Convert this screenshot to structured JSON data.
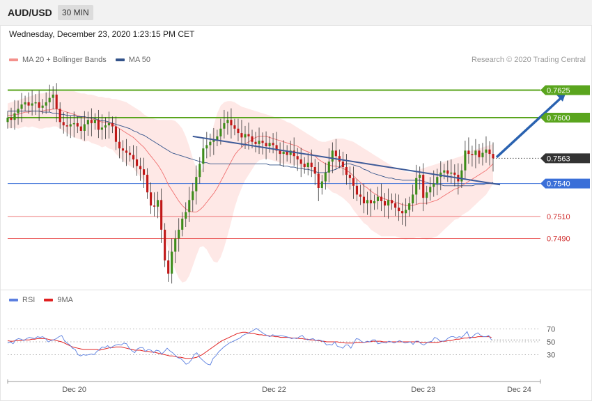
{
  "header": {
    "symbol": "AUD/USD",
    "timeframe": "30 MIN",
    "datetime": "Wednesday, December 23, 2020 1:23:15 PM CET"
  },
  "legend": {
    "ma20_label": "MA 20 + Bollinger Bands",
    "ma50_label": "MA 50",
    "credit": "Research © 2020 Trading Central",
    "rsi_label": "RSI",
    "ma9_label": "9MA"
  },
  "colors": {
    "resistance": "#5aa51e",
    "support_ma": "#3a6fd8",
    "support": "#e84a4a",
    "price_badge": "#333333",
    "candle_up": "#3d8c1a",
    "candle_down": "#c01818",
    "bollinger_fill": "#fde0de",
    "ma20": "#f07070",
    "ma50": "#33538a",
    "trendline": "#3d5a98",
    "arrow": "#2a62b0",
    "rsi_line": "#5b7fe0",
    "rsi_ma": "#e02020"
  },
  "chart_data": {
    "type": "candlestick",
    "symbol": "AUD/USD",
    "interval": "30 MIN",
    "price_range": [
      0.7446,
      0.7645
    ],
    "levels": [
      {
        "value": 0.7625,
        "label": "0.7625",
        "kind": "resistance"
      },
      {
        "value": 0.76,
        "label": "0.7600",
        "kind": "resistance"
      },
      {
        "value": 0.7563,
        "label": "0.7563",
        "kind": "last-price"
      },
      {
        "value": 0.754,
        "label": "0.7540",
        "kind": "support"
      },
      {
        "value": 0.751,
        "label": "0.7510",
        "kind": "support"
      },
      {
        "value": 0.749,
        "label": "0.7490",
        "kind": "support"
      }
    ],
    "x_ticks": [
      "Dec 20",
      "Dec 22",
      "Dec 23",
      "Dec 24"
    ],
    "x_tick_positions": [
      12.5,
      50,
      78,
      96
    ],
    "closes": [
      0.76,
      0.7598,
      0.7604,
      0.7608,
      0.7612,
      0.7614,
      0.7611,
      0.7613,
      0.7614,
      0.7609,
      0.7611,
      0.7614,
      0.7618,
      0.7621,
      0.7608,
      0.7596,
      0.7593,
      0.7592,
      0.7594,
      0.7595,
      0.7592,
      0.7588,
      0.7594,
      0.7598,
      0.7595,
      0.7598,
      0.7589,
      0.7591,
      0.7593,
      0.7595,
      0.7592,
      0.7578,
      0.7572,
      0.757,
      0.7568,
      0.7566,
      0.7562,
      0.7556,
      0.7553,
      0.7548,
      0.7532,
      0.752,
      0.7519,
      0.7525,
      0.7498,
      0.747,
      0.7458,
      0.7478,
      0.749,
      0.7498,
      0.7508,
      0.7514,
      0.7525,
      0.7533,
      0.7546,
      0.7558,
      0.7572,
      0.7575,
      0.7578,
      0.758,
      0.7583,
      0.759,
      0.7595,
      0.7598,
      0.7593,
      0.759,
      0.7586,
      0.7582,
      0.7585,
      0.7583,
      0.7578,
      0.7576,
      0.7579,
      0.7577,
      0.7574,
      0.7577,
      0.7575,
      0.757,
      0.7567,
      0.7569,
      0.7566,
      0.757,
      0.7565,
      0.7562,
      0.7558,
      0.7555,
      0.7559,
      0.7555,
      0.7549,
      0.7536,
      0.7542,
      0.755,
      0.756,
      0.757,
      0.7565,
      0.756,
      0.7555,
      0.7548,
      0.7545,
      0.7538,
      0.753,
      0.7528,
      0.7522,
      0.7525,
      0.7522,
      0.7524,
      0.7528,
      0.7524,
      0.752,
      0.7525,
      0.7522,
      0.7518,
      0.7515,
      0.7513,
      0.7516,
      0.7522,
      0.753,
      0.7545,
      0.7548,
      0.7527,
      0.7532,
      0.7537,
      0.754,
      0.7546,
      0.755,
      0.7552,
      0.7549,
      0.755,
      0.7548,
      0.7542,
      0.7552,
      0.757,
      0.7567,
      0.7566,
      0.757,
      0.7564,
      0.7568,
      0.7571,
      0.7567,
      0.7563
    ],
    "ma20": [
      0.7602,
      0.7602,
      0.7603,
      0.7603,
      0.7604,
      0.7605,
      0.7605,
      0.7606,
      0.7606,
      0.7606,
      0.7606,
      0.7607,
      0.7607,
      0.7608,
      0.7608,
      0.7607,
      0.7606,
      0.7605,
      0.7604,
      0.7603,
      0.7602,
      0.7601,
      0.76,
      0.76,
      0.7599,
      0.7598,
      0.7597,
      0.7596,
      0.7596,
      0.7595,
      0.7594,
      0.7592,
      0.759,
      0.7588,
      0.7586,
      0.7584,
      0.7582,
      0.7579,
      0.7576,
      0.7573,
      0.7569,
      0.7565,
      0.7561,
      0.7557,
      0.7552,
      0.7546,
      0.7539,
      0.7534,
      0.7529,
      0.7524,
      0.752,
      0.7517,
      0.7515,
      0.7514,
      0.7514,
      0.7516,
      0.7519,
      0.7523,
      0.7527,
      0.7531,
      0.7536,
      0.7542,
      0.7548,
      0.7554,
      0.756,
      0.7566,
      0.757,
      0.7573,
      0.7576,
      0.7578,
      0.758,
      0.7582,
      0.7583,
      0.7583,
      0.7583,
      0.7582,
      0.7581,
      0.758,
      0.7579,
      0.7578,
      0.7577,
      0.7576,
      0.7575,
      0.7574,
      0.7572,
      0.757,
      0.7569,
      0.7567,
      0.7565,
      0.7562,
      0.756,
      0.7558,
      0.7557,
      0.7556,
      0.7556,
      0.7555,
      0.7554,
      0.7552,
      0.755,
      0.7547,
      0.7544,
      0.7541,
      0.7538,
      0.7536,
      0.7533,
      0.7531,
      0.7529,
      0.7527,
      0.7526,
      0.7525,
      0.7524,
      0.7523,
      0.7522,
      0.7521,
      0.752,
      0.752,
      0.752,
      0.7521,
      0.7522,
      0.7522,
      0.7522,
      0.7523,
      0.7524,
      0.7525,
      0.7527,
      0.7529,
      0.7531,
      0.7533,
      0.7535,
      0.7536,
      0.7538,
      0.754,
      0.7542,
      0.7544,
      0.7546,
      0.7548,
      0.755,
      0.7552,
      0.7555,
      0.7558
    ],
    "bb_upper": [
      0.7613,
      0.7614,
      0.7615,
      0.7616,
      0.7617,
      0.7618,
      0.7619,
      0.762,
      0.7621,
      0.7622,
      0.7622,
      0.7623,
      0.7623,
      0.7624,
      0.7624,
      0.7624,
      0.7624,
      0.7624,
      0.7624,
      0.7624,
      0.7623,
      0.7622,
      0.7622,
      0.7621,
      0.7621,
      0.762,
      0.7619,
      0.7619,
      0.7618,
      0.7618,
      0.7617,
      0.7617,
      0.7616,
      0.7615,
      0.7614,
      0.7612,
      0.761,
      0.7608,
      0.7606,
      0.7603,
      0.7601,
      0.76,
      0.7599,
      0.7598,
      0.7598,
      0.7598,
      0.7598,
      0.7598,
      0.7597,
      0.7594,
      0.759,
      0.7583,
      0.7574,
      0.7563,
      0.7554,
      0.755,
      0.7555,
      0.7566,
      0.758,
      0.7593,
      0.7604,
      0.7611,
      0.7614,
      0.7615,
      0.7615,
      0.7614,
      0.7612,
      0.761,
      0.7609,
      0.7608,
      0.7607,
      0.7606,
      0.7605,
      0.7604,
      0.7603,
      0.7602,
      0.7601,
      0.76,
      0.7599,
      0.7598,
      0.7596,
      0.7595,
      0.7593,
      0.7591,
      0.7589,
      0.7587,
      0.7585,
      0.7583,
      0.7581,
      0.7579,
      0.7578,
      0.7578,
      0.7579,
      0.758,
      0.7581,
      0.7581,
      0.7581,
      0.758,
      0.7579,
      0.7578,
      0.7576,
      0.7574,
      0.7572,
      0.757,
      0.7568,
      0.7566,
      0.7564,
      0.7562,
      0.756,
      0.7558,
      0.7556,
      0.7554,
      0.7553,
      0.7552,
      0.7551,
      0.755,
      0.755,
      0.7551,
      0.7553,
      0.7554,
      0.7555,
      0.7556,
      0.7557,
      0.7558,
      0.7559,
      0.756,
      0.7561,
      0.7562,
      0.7563,
      0.7564,
      0.7565,
      0.7567,
      0.7569,
      0.757,
      0.7571,
      0.7572,
      0.7573,
      0.7574,
      0.7575,
      0.7576
    ],
    "bb_lower": [
      0.7591,
      0.759,
      0.7591,
      0.759,
      0.7591,
      0.7592,
      0.7591,
      0.7592,
      0.7591,
      0.759,
      0.759,
      0.7591,
      0.7591,
      0.7592,
      0.7592,
      0.759,
      0.7588,
      0.7586,
      0.7584,
      0.7582,
      0.7581,
      0.758,
      0.7578,
      0.7579,
      0.7577,
      0.7576,
      0.7575,
      0.7573,
      0.7574,
      0.7572,
      0.7571,
      0.7567,
      0.7564,
      0.7561,
      0.7558,
      0.7556,
      0.7554,
      0.755,
      0.7546,
      0.7543,
      0.7537,
      0.753,
      0.7523,
      0.7516,
      0.7506,
      0.7494,
      0.748,
      0.747,
      0.7461,
      0.7454,
      0.745,
      0.7451,
      0.7456,
      0.7465,
      0.7474,
      0.7482,
      0.7483,
      0.748,
      0.7474,
      0.7469,
      0.7468,
      0.7473,
      0.7482,
      0.7493,
      0.7505,
      0.7518,
      0.7528,
      0.7536,
      0.7543,
      0.7548,
      0.7553,
      0.7558,
      0.7561,
      0.7562,
      0.7563,
      0.7562,
      0.7561,
      0.756,
      0.7559,
      0.7558,
      0.7558,
      0.7557,
      0.7557,
      0.7557,
      0.7555,
      0.7553,
      0.7553,
      0.7551,
      0.7549,
      0.7545,
      0.7542,
      0.7538,
      0.7535,
      0.7532,
      0.7531,
      0.7529,
      0.7527,
      0.7524,
      0.7521,
      0.7516,
      0.7512,
      0.7508,
      0.7504,
      0.7502,
      0.7498,
      0.7496,
      0.7494,
      0.7492,
      0.7492,
      0.7492,
      0.7492,
      0.7492,
      0.7491,
      0.749,
      0.7489,
      0.749,
      0.749,
      0.7491,
      0.7491,
      0.749,
      0.7489,
      0.749,
      0.7491,
      0.7492,
      0.7495,
      0.7498,
      0.7501,
      0.7504,
      0.7507,
      0.7508,
      0.7511,
      0.7513,
      0.7515,
      0.7518,
      0.7521,
      0.7524,
      0.7527,
      0.753,
      0.7535,
      0.754
    ],
    "ma50": [
      0.7606,
      0.7606,
      0.7606,
      0.7606,
      0.7606,
      0.7606,
      0.7606,
      0.7606,
      0.7606,
      0.7606,
      0.7605,
      0.7605,
      0.7605,
      0.7604,
      0.7604,
      0.7603,
      0.7603,
      0.7602,
      0.7602,
      0.7602,
      0.7601,
      0.7601,
      0.7601,
      0.76,
      0.76,
      0.7599,
      0.7598,
      0.7597,
      0.7597,
      0.7596,
      0.7595,
      0.7594,
      0.7593,
      0.7592,
      0.7591,
      0.759,
      0.7588,
      0.7587,
      0.7585,
      0.7584,
      0.7582,
      0.758,
      0.7578,
      0.7576,
      0.7574,
      0.7572,
      0.757,
      0.7568,
      0.7567,
      0.7566,
      0.7565,
      0.7564,
      0.7563,
      0.7562,
      0.7561,
      0.756,
      0.7559,
      0.7559,
      0.7558,
      0.7558,
      0.7558,
      0.7558,
      0.7558,
      0.7558,
      0.7558,
      0.7558,
      0.7558,
      0.7558,
      0.7558,
      0.7558,
      0.7558,
      0.7558,
      0.7558,
      0.7558,
      0.7558,
      0.7557,
      0.7557,
      0.7557,
      0.7557,
      0.7556,
      0.7556,
      0.7555,
      0.7555,
      0.7554,
      0.7554,
      0.7553,
      0.7553,
      0.7552,
      0.7551,
      0.755,
      0.755,
      0.755,
      0.7551,
      0.7552,
      0.7553,
      0.7555,
      0.7557,
      0.7558,
      0.7558,
      0.7557,
      0.7556,
      0.7555,
      0.7553,
      0.7552,
      0.755,
      0.7549,
      0.7548,
      0.7547,
      0.7546,
      0.7545,
      0.7545,
      0.7544,
      0.7544,
      0.7543,
      0.7543,
      0.7543,
      0.7543,
      0.7543,
      0.7543,
      0.7542,
      0.7541,
      0.754,
      0.754,
      0.7539,
      0.7539,
      0.7538,
      0.7538,
      0.7538,
      0.7538,
      0.7538,
      0.7538,
      0.7538,
      0.7538,
      0.7538,
      0.7539,
      0.7539,
      0.7539,
      0.754,
      0.754,
      0.7541
    ],
    "trendline": {
      "from": {
        "index": 53,
        "value": 0.7583
      },
      "to": {
        "index": 141,
        "value": 0.7539
      }
    },
    "projection": {
      "from": {
        "index": 140,
        "value": 0.7564
      },
      "to": {
        "index": 160,
        "value": 0.7624
      }
    },
    "rsi": {
      "ylim": [
        0,
        100
      ],
      "levels": [
        70,
        50,
        30
      ],
      "level_labels": [
        "70",
        "50",
        "30"
      ],
      "rsi_values": [
        48,
        50,
        47,
        53,
        55,
        54,
        52,
        55,
        57,
        56,
        55,
        58,
        57,
        58,
        55,
        50,
        52,
        53,
        55,
        58,
        60,
        52,
        48,
        45,
        40,
        38,
        30,
        28,
        30,
        29,
        30,
        31,
        30,
        35,
        38,
        42,
        41,
        44,
        40,
        43,
        45,
        46,
        45,
        48,
        47,
        40,
        36,
        33,
        39,
        41,
        41,
        35,
        38,
        37,
        33,
        37,
        36,
        31,
        35,
        40,
        36,
        33,
        29,
        25,
        24,
        20,
        15,
        17,
        22,
        30,
        33,
        26,
        22,
        18,
        15,
        14,
        24,
        28,
        34,
        38,
        42,
        45,
        48,
        50,
        52,
        54,
        56,
        60,
        62,
        63,
        66,
        68,
        71,
        68,
        65,
        62,
        60,
        58,
        61,
        60,
        59,
        60,
        59,
        58,
        57,
        55,
        56,
        55,
        58,
        60,
        55,
        53,
        54,
        55,
        52,
        53,
        52,
        50,
        45,
        46,
        45,
        50,
        43,
        42,
        40,
        45,
        45,
        40,
        48,
        55,
        54,
        50,
        49,
        51,
        50,
        53,
        53,
        47,
        48,
        49,
        48,
        51,
        50,
        48,
        50,
        52,
        50,
        48,
        49,
        50,
        46,
        51,
        51,
        47,
        45,
        48,
        50,
        51,
        57,
        55,
        51,
        51,
        52,
        56,
        58,
        58,
        56,
        58,
        57,
        61,
        66,
        55,
        58,
        62,
        64,
        60,
        58,
        58,
        60,
        53
      ],
      "ma_values": [
        52,
        51,
        51,
        52,
        52,
        52,
        53,
        53,
        53,
        54,
        54,
        55,
        55,
        55,
        55,
        54,
        53,
        53,
        52,
        51,
        50,
        48,
        46,
        44,
        42,
        41,
        40,
        39,
        38,
        38,
        38,
        38,
        38,
        38,
        37,
        38,
        39,
        40,
        41,
        41,
        42,
        42,
        42,
        41,
        40,
        39,
        38,
        37,
        37,
        37,
        36,
        35,
        35,
        34,
        34,
        33,
        32,
        31,
        30,
        29,
        28,
        28,
        27,
        26,
        26,
        25,
        24,
        24,
        24,
        25,
        26,
        28,
        30,
        33,
        36,
        39,
        42,
        45,
        48,
        51,
        53,
        55,
        57,
        59,
        61,
        63,
        64,
        65,
        65,
        64,
        63,
        63,
        62,
        61,
        61,
        60,
        60,
        59,
        59,
        58,
        58,
        57,
        57,
        57,
        57,
        56,
        56,
        56,
        55,
        55,
        54,
        54,
        53,
        53,
        52,
        52,
        51,
        51,
        50,
        50,
        50,
        50,
        50,
        49,
        49,
        48,
        48,
        48,
        48,
        49,
        49,
        49,
        49,
        50,
        50,
        51,
        51,
        51,
        51,
        50,
        50,
        50,
        50,
        50,
        50,
        50,
        50,
        50,
        50,
        50,
        50,
        50,
        50,
        49,
        49,
        49,
        49,
        49,
        49,
        49,
        50,
        51,
        51,
        52,
        52,
        53,
        54,
        54,
        55,
        56,
        56,
        57,
        57,
        57,
        58,
        58,
        58,
        58,
        58,
        57
      ],
      "x_span_percent": [
        0,
        90.8
      ]
    }
  },
  "axis": {
    "x_labels": [
      "Dec 20",
      "Dec 22",
      "Dec 23",
      "Dec 24"
    ]
  }
}
